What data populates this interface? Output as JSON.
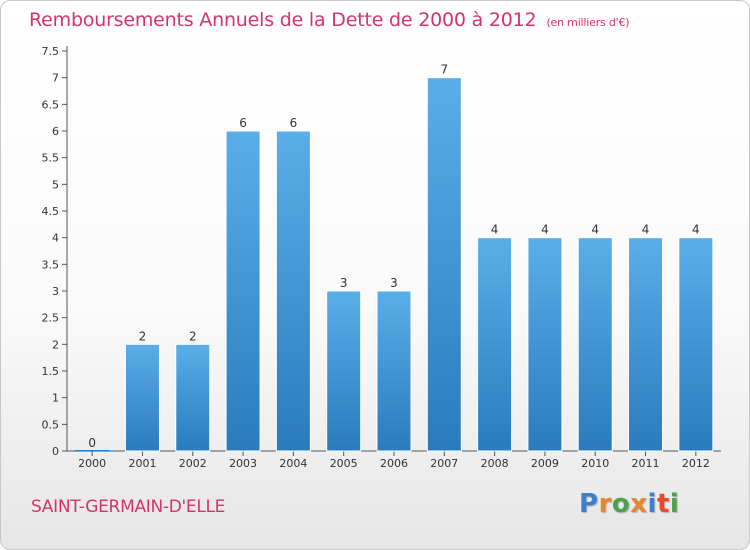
{
  "header": {
    "title": "Remboursements Annuels de la Dette de 2000 à 2012",
    "subtitle": "(en milliers d'€)"
  },
  "footer": {
    "commune": "SAINT-GERMAIN-D'ELLE",
    "logo_letters": [
      "P",
      "r",
      "o",
      "x",
      "i",
      "t",
      "i"
    ],
    "logo_text": "Proxiti"
  },
  "colors": {
    "title": "#d6336c",
    "bar_light": "#5aaee8",
    "bar_dark": "#2a7bbd",
    "logo": [
      "#3a7fd0",
      "#e8862a",
      "#4aa34a",
      "#e8862a",
      "#3a7fd0",
      "#e84a2a",
      "#4aa34a"
    ]
  },
  "chart_data": {
    "type": "bar",
    "title": "Remboursements Annuels de la Dette de 2000 à 2012",
    "xlabel": "",
    "ylabel": "",
    "unit": "milliers d'€",
    "categories": [
      "2000",
      "2001",
      "2002",
      "2003",
      "2004",
      "2005",
      "2006",
      "2007",
      "2008",
      "2009",
      "2010",
      "2011",
      "2012"
    ],
    "values": [
      0,
      2,
      2,
      6,
      6,
      3,
      3,
      7,
      4,
      4,
      4,
      4,
      4
    ],
    "value_labels": [
      "0",
      "2",
      "2",
      "6",
      "6",
      "3",
      "3",
      "7",
      "4",
      "4",
      "4",
      "4",
      "4"
    ],
    "ylim": [
      0,
      7.5
    ],
    "yticks": [
      0,
      0.5,
      1,
      1.5,
      2,
      2.5,
      3,
      3.5,
      4,
      4.5,
      5,
      5.5,
      6,
      6.5,
      7,
      7.5
    ],
    "ytick_labels": [
      "0",
      "0.5",
      "1",
      "1.5",
      "2",
      "2.5",
      "3",
      "3.5",
      "4",
      "4.5",
      "5",
      "5.5",
      "6",
      "6.5",
      "7",
      "7.5"
    ],
    "grid": false,
    "legend": "none"
  }
}
